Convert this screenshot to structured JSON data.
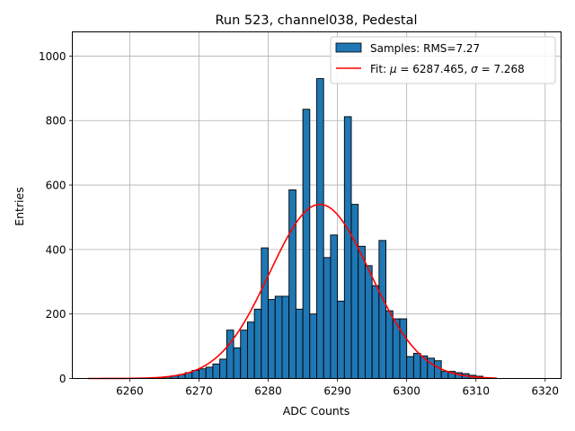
{
  "chart_data": {
    "type": "bar",
    "title": "Run 523, channel038, Pedestal",
    "xlabel": "ADC Counts",
    "ylabel": "Entries",
    "xlim": [
      6251.7,
      6322.3
    ],
    "ylim": [
      0,
      1075
    ],
    "xticks": [
      6260,
      6270,
      6280,
      6290,
      6300,
      6310,
      6320
    ],
    "yticks": [
      0,
      200,
      400,
      600,
      800,
      1000
    ],
    "grid": true,
    "legend_position": "top-right",
    "histogram": {
      "name": "Samples: RMS=7.27",
      "color": "#1f77b4",
      "bin_start": 6264.0,
      "bin_width": 1.0,
      "values": [
        2,
        5,
        8,
        12,
        18,
        25,
        30,
        35,
        45,
        60,
        150,
        95,
        150,
        175,
        215,
        405,
        245,
        255,
        255,
        585,
        215,
        835,
        200,
        930,
        375,
        445,
        240,
        812,
        540,
        410,
        350,
        288,
        428,
        210,
        185,
        185,
        68,
        78,
        70,
        63,
        55,
        22,
        22,
        18,
        15,
        10,
        7,
        3
      ]
    },
    "fit": {
      "name_prefix": "Fit: ",
      "name_mu_symbol": "μ",
      "name_mu_value": " = 6287.465, ",
      "name_sigma_symbol": "σ",
      "name_sigma_value": " = 7.268",
      "color": "#ff0000",
      "mu": 6287.465,
      "sigma": 7.268,
      "amplitude": 540,
      "x_range": [
        6254.0,
        6313.0
      ]
    }
  }
}
